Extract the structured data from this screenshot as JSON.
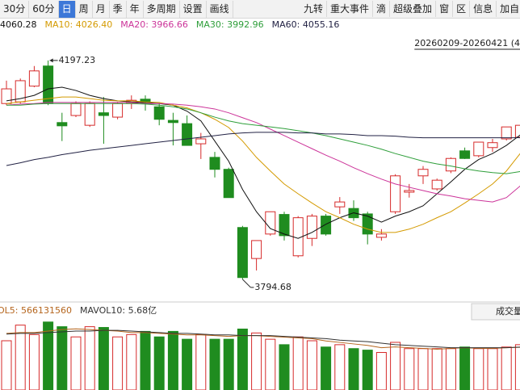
{
  "toolbar": {
    "left": [
      "30分",
      "60分",
      "日",
      "周",
      "月",
      "季",
      "年",
      "多周期",
      "设置",
      "画线"
    ],
    "selected": 2,
    "right": [
      "九转",
      "重大事件",
      "滴",
      "超级叠加",
      "窗",
      "区",
      "信息",
      "加自"
    ]
  },
  "chart_data": [
    {
      "type": "candlestick",
      "range_label": "20260209-20260421 (4",
      "up_color": "#d62a2a",
      "down_color": "#1f8c1f",
      "ylim": [
        3756,
        4249
      ],
      "open": [
        4118,
        4121,
        4150,
        4187,
        4083,
        4096,
        4078,
        4101,
        4093,
        4118,
        4126,
        4112,
        4087,
        4081,
        4044,
        4019,
        3997,
        3890,
        3833,
        3878,
        3914,
        3838,
        3870,
        3911,
        3928,
        3925,
        3915,
        3872,
        3919,
        3955,
        3985,
        3961,
        3994,
        4031,
        4022,
        4037,
        4053,
        4056
      ],
      "high": [
        4160,
        4164,
        4187,
        4197.23,
        4101,
        4122,
        4122,
        4130,
        4121,
        4133,
        4133,
        4118,
        4101,
        4096,
        4064,
        4029,
        4000,
        3893,
        3866,
        3919,
        3919,
        3911,
        3915,
        3915,
        3946,
        3940,
        3919,
        3887,
        3988,
        3970,
        4003,
        3980,
        4019,
        4037,
        4047,
        4053,
        4075,
        4078
      ],
      "low": [
        4115,
        4118,
        4148,
        4115,
        4049,
        4093,
        4075,
        4044,
        4089,
        4108,
        4105,
        4078,
        4041,
        4041,
        4016,
        3982,
        3945,
        3794.68,
        3811,
        3875,
        3866,
        3835,
        3856,
        3875,
        3915,
        3902,
        3859,
        3866,
        3915,
        3945,
        3970,
        3958,
        3990,
        4016,
        4019,
        4029,
        4050,
        4053
      ],
      "close": [
        4145,
        4160,
        4178,
        4118,
        4077,
        4118,
        4118,
        4096,
        4118,
        4124,
        4120,
        4089,
        4083,
        4041,
        4053,
        3997,
        3945,
        3798,
        3866,
        3919,
        3875,
        3908,
        3911,
        3878,
        3937,
        3908,
        3878,
        3878,
        3985,
        3958,
        3997,
        3977,
        4017,
        4017,
        4047,
        4046,
        4075,
        4078
      ],
      "series": [
        {
          "name": "4060.28",
          "color": "#111111",
          "values": [
            4123,
            4127,
            4133,
            4145,
            4148,
            4142,
            4133,
            4127,
            4123,
            4121,
            4120,
            4118,
            4115,
            4104,
            4086,
            4049,
            4012,
            3960,
            3919,
            3888,
            3878,
            3870,
            3881,
            3896,
            3908,
            3917,
            3911,
            3900,
            3911,
            3919,
            3930,
            3952,
            3974,
            3997,
            4015,
            4026,
            4041,
            4060.28
          ]
        },
        {
          "name": "MA10: 4026.40",
          "color": "#d49a00",
          "values": [
            4118,
            4121,
            4124,
            4127,
            4130,
            4130,
            4127,
            4124,
            4123,
            4123,
            4121,
            4120,
            4115,
            4110,
            4101,
            4089,
            4074,
            4049,
            4019,
            3994,
            3970,
            3952,
            3935,
            3919,
            3908,
            3896,
            3887,
            3881,
            3881,
            3887,
            3896,
            3908,
            3919,
            3935,
            3952,
            3970,
            3994,
            4026.4
          ]
        },
        {
          "name": "MA20: 3966.66",
          "color": "#cc3399",
          "values": [
            4115,
            4117,
            4118,
            4120,
            4120,
            4120,
            4120,
            4120,
            4120,
            4120,
            4118,
            4118,
            4117,
            4115,
            4112,
            4108,
            4101,
            4092,
            4083,
            4071,
            4059,
            4047,
            4035,
            4023,
            4012,
            4000,
            3989,
            3979,
            3970,
            3964,
            3958,
            3952,
            3948,
            3943,
            3940,
            3937,
            3945,
            3966.66
          ]
        },
        {
          "name": "MA30: 3992.96",
          "color": "#2e9e3a",
          "values": [
            4115,
            4115,
            4117,
            4118,
            4118,
            4118,
            4118,
            4118,
            4118,
            4118,
            4117,
            4115,
            4112,
            4108,
            4101,
            4093,
            4086,
            4081,
            4078,
            4075,
            4072,
            4068,
            4064,
            4059,
            4053,
            4047,
            4041,
            4034,
            4026,
            4019,
            4012,
            4007,
            4003,
            3998,
            3994,
            3991,
            3989,
            3992.96
          ]
        },
        {
          "name": "MA60: 4055.16",
          "color": "#222244",
          "values": [
            4004,
            4009,
            4015,
            4019,
            4024,
            4028,
            4032,
            4035,
            4038,
            4041,
            4044,
            4047,
            4050,
            4053,
            4056,
            4059,
            4062,
            4064,
            4065,
            4065,
            4065,
            4064,
            4064,
            4062,
            4062,
            4061,
            4059,
            4059,
            4058,
            4056,
            4055,
            4055,
            4055,
            4055,
            4055,
            4055,
            4055,
            4055.16
          ]
        }
      ]
    },
    {
      "type": "bar",
      "title": "成交量",
      "ylim": [
        0,
        9.3
      ],
      "values": [
        6.52,
        8.59,
        7.34,
        9.0,
        8.38,
        7.03,
        8.38,
        8.28,
        7.03,
        7.34,
        7.76,
        7.03,
        7.76,
        6.72,
        7.34,
        6.72,
        6.72,
        8.07,
        7.55,
        6.72,
        6.0,
        7.03,
        6.52,
        5.69,
        6.0,
        5.48,
        5.28,
        4.97,
        6.31,
        5.48,
        5.48,
        5.48,
        5.48,
        5.69,
        5.48,
        5.48,
        5.69,
        6.0
      ],
      "series": [
        {
          "name": "OL5: 566131560",
          "color": "#b5651d",
          "values": [
            7.5,
            7.6,
            7.6,
            7.8,
            8.0,
            8.1,
            8.0,
            7.9,
            7.8,
            7.6,
            7.6,
            7.5,
            7.4,
            7.3,
            7.3,
            7.2,
            7.1,
            7.2,
            7.2,
            7.1,
            7.0,
            6.9,
            6.8,
            6.5,
            6.3,
            6.1,
            5.9,
            5.6,
            5.7,
            5.6,
            5.5,
            5.4,
            5.5,
            5.6,
            5.5,
            5.5,
            5.6,
            5.66
          ]
        },
        {
          "name": "MAVOL10: 5.68亿",
          "color": "#333333",
          "values": [
            7.4,
            7.5,
            7.5,
            7.6,
            7.7,
            7.8,
            7.8,
            7.9,
            7.9,
            7.8,
            7.7,
            7.6,
            7.5,
            7.5,
            7.4,
            7.3,
            7.3,
            7.2,
            7.2,
            7.2,
            7.1,
            7.0,
            6.9,
            6.8,
            6.6,
            6.5,
            6.4,
            6.2,
            6.0,
            5.9,
            5.8,
            5.7,
            5.6,
            5.6,
            5.6,
            5.6,
            5.6,
            5.68
          ]
        }
      ]
    }
  ]
}
